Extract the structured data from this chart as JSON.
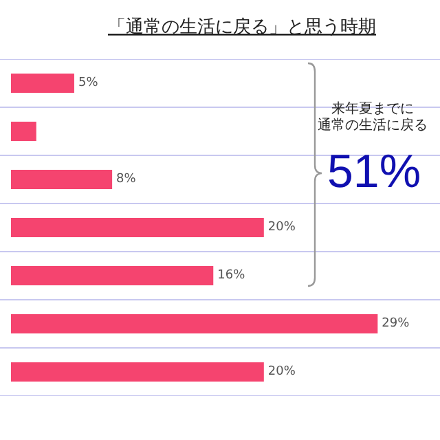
{
  "chart_data": {
    "type": "bar",
    "orientation": "horizontal",
    "title": "「通常の生活に戻る」と思う時期",
    "categories": [
      null,
      null,
      null,
      null,
      null,
      null,
      null
    ],
    "values": [
      5,
      2,
      8,
      20,
      16,
      29,
      20
    ],
    "value_labels": [
      "5%",
      null,
      "8%",
      "20%",
      "16%",
      "29%",
      "20%"
    ],
    "color": "#f5446f",
    "grid": "y",
    "annotations": [
      "来年夏までに",
      "通常の生活に戻る",
      "51%"
    ]
  }
}
